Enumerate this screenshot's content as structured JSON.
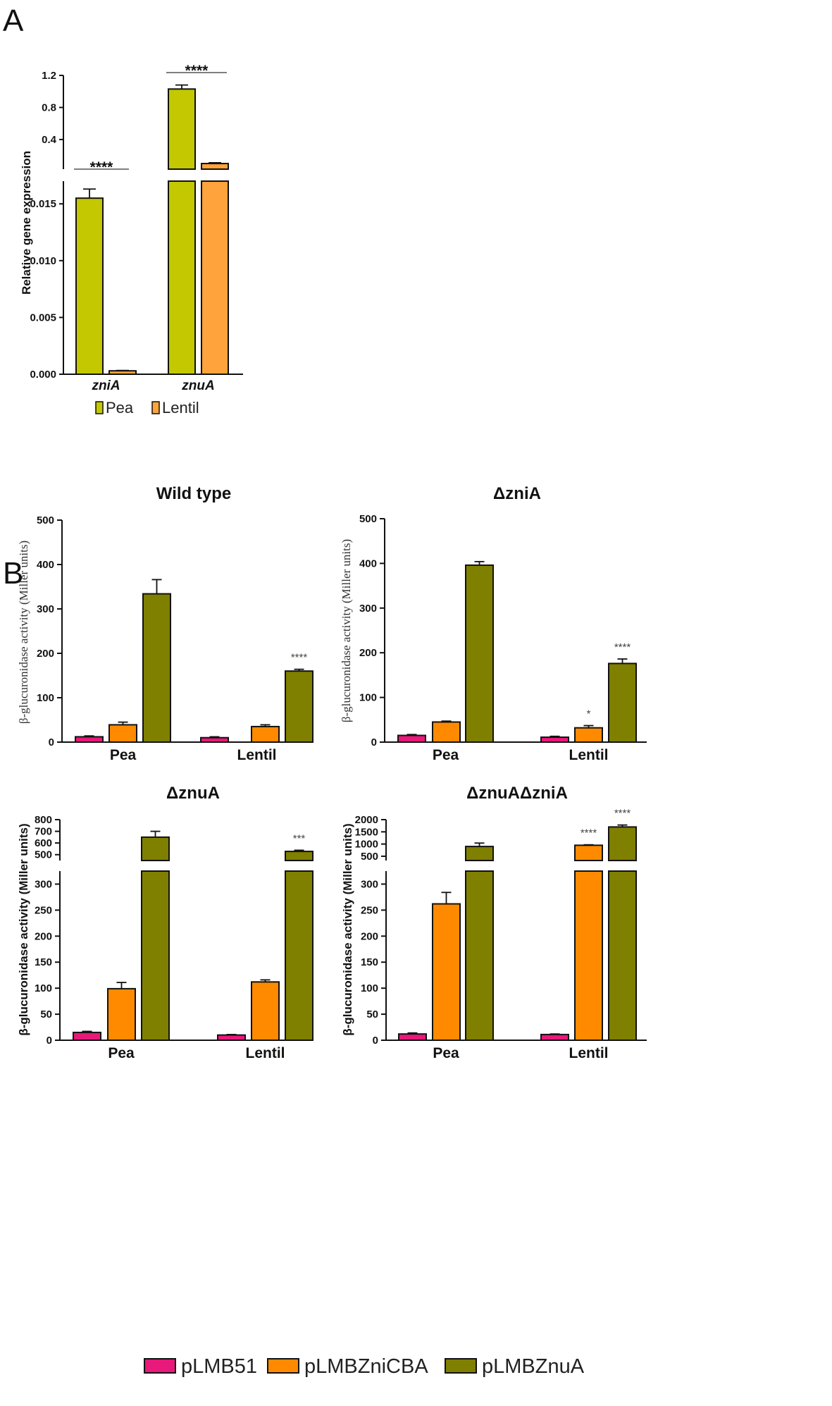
{
  "figure": {
    "label_a": "A",
    "label_b": "B"
  },
  "colors": {
    "pea": "#c3c800",
    "lentil": "#ffa33c",
    "pLMB51": "#e8197a",
    "pLMBZniCBA": "#ff8a00",
    "pLMBZnuA": "#7f7f00",
    "axis": "#111111"
  },
  "chart_data": [
    {
      "id": "A",
      "type": "bar",
      "title": "",
      "xlabel": "",
      "ylabel": "Relative gene expression",
      "categories": [
        "zniA",
        "znuA"
      ],
      "series": [
        {
          "name": "Pea",
          "values": [
            0.0155,
            1.03
          ],
          "errors": [
            0.0008,
            0.05
          ]
        },
        {
          "name": "Lentil",
          "values": [
            0.0003,
            0.1
          ],
          "errors": [
            3e-05,
            0.01
          ]
        }
      ],
      "broken_axis": {
        "lower_range": [
          0,
          0.017
        ],
        "upper_range": [
          0.03,
          1.2
        ]
      },
      "lower_ticks": [
        "0.000",
        "0.005",
        "0.010",
        "0.015"
      ],
      "upper_ticks": [
        "0.4",
        "0.8",
        "1.2"
      ],
      "significance": [
        "****",
        "****"
      ],
      "legend": [
        "Pea",
        "Lentil"
      ]
    },
    {
      "id": "B1",
      "type": "bar",
      "title": "Wild type",
      "ylabel": "β-glucuronidase activity (Miller units)",
      "categories": [
        "Pea",
        "Lentil"
      ],
      "ylim": [
        0,
        500
      ],
      "ticks": [
        "0",
        "100",
        "200",
        "300",
        "400",
        "500"
      ],
      "series": [
        {
          "name": "pLMB51",
          "values": [
            12,
            10
          ],
          "errors": [
            2,
            2
          ]
        },
        {
          "name": "pLMBZniCBA",
          "values": [
            39,
            35
          ],
          "errors": [
            6,
            4
          ]
        },
        {
          "name": "pLMBZnuA",
          "values": [
            334,
            160
          ],
          "errors": [
            32,
            4
          ]
        }
      ],
      "significance": {
        "Lentil": {
          "pLMBZnuA": "****"
        }
      }
    },
    {
      "id": "B2",
      "type": "bar",
      "title": "ΔzniA",
      "ylabel": "β-glucuronidase activity (Miller units)",
      "categories": [
        "Pea",
        "Lentil"
      ],
      "ylim": [
        0,
        500
      ],
      "ticks": [
        "0",
        "100",
        "200",
        "300",
        "400",
        "500"
      ],
      "series": [
        {
          "name": "pLMB51",
          "values": [
            15,
            11
          ],
          "errors": [
            2,
            2
          ]
        },
        {
          "name": "pLMBZniCBA",
          "values": [
            45,
            32
          ],
          "errors": [
            2,
            5
          ]
        },
        {
          "name": "pLMBZnuA",
          "values": [
            396,
            176
          ],
          "errors": [
            8,
            10
          ]
        }
      ],
      "significance": {
        "Lentil": {
          "pLMBZniCBA": "*",
          "pLMBZnuA": "****"
        }
      }
    },
    {
      "id": "B3",
      "type": "bar",
      "title": "ΔznuA",
      "ylabel": "β-glucuronidase activity (Miller units)",
      "categories": [
        "Pea",
        "Lentil"
      ],
      "broken_axis": {
        "lower_range": [
          0,
          325
        ],
        "upper_range": [
          450,
          800
        ]
      },
      "lower_ticks": [
        "0",
        "50",
        "100",
        "150",
        "200",
        "250",
        "300"
      ],
      "upper_ticks": [
        "500",
        "600",
        "700",
        "800"
      ],
      "series": [
        {
          "name": "pLMB51",
          "values": [
            15,
            10
          ],
          "errors": [
            2,
            1
          ]
        },
        {
          "name": "pLMBZniCBA",
          "values": [
            99,
            112
          ],
          "errors": [
            12,
            4
          ]
        },
        {
          "name": "pLMBZnuA",
          "values": [
            650,
            528
          ],
          "errors": [
            50,
            10
          ]
        }
      ],
      "significance": {
        "Lentil": {
          "pLMBZnuA": "***"
        }
      }
    },
    {
      "id": "B4",
      "type": "bar",
      "title": "ΔznuAΔzniA",
      "ylabel": "β-glucuronidase activity (Miller units)",
      "categories": [
        "Pea",
        "Lentil"
      ],
      "broken_axis": {
        "lower_range": [
          0,
          325
        ],
        "upper_range": [
          325,
          2000
        ]
      },
      "lower_ticks": [
        "0",
        "50",
        "100",
        "150",
        "200",
        "250",
        "300"
      ],
      "upper_ticks": [
        "500",
        "1000",
        "1500",
        "2000"
      ],
      "series": [
        {
          "name": "pLMB51",
          "values": [
            12,
            11
          ],
          "errors": [
            2,
            1
          ]
        },
        {
          "name": "pLMBZniCBA",
          "values": [
            262,
            950
          ],
          "errors": [
            22,
            20
          ]
        },
        {
          "name": "pLMBZnuA",
          "values": [
            900,
            1700
          ],
          "errors": [
            140,
            80
          ]
        }
      ],
      "significance": {
        "Lentil": {
          "pLMBZniCBA": "****",
          "pLMBZnuA": "****"
        }
      }
    }
  ],
  "legend_b": [
    "pLMB51",
    "pLMBZniCBA",
    "pLMBZnuA"
  ]
}
